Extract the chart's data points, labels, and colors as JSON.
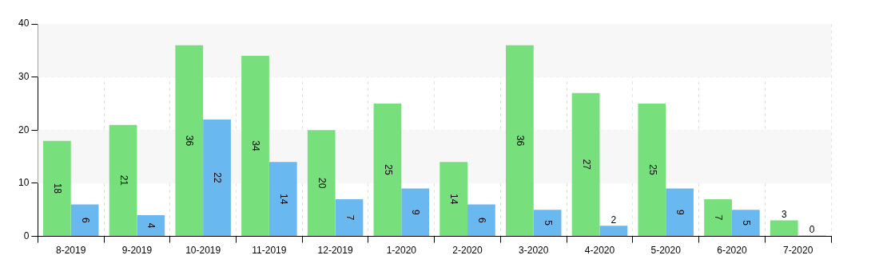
{
  "chart_data": {
    "type": "bar",
    "categories": [
      "8-2019",
      "9-2019",
      "10-2019",
      "11-2019",
      "12-2019",
      "1-2020",
      "2-2020",
      "3-2020",
      "4-2020",
      "5-2020",
      "6-2020",
      "7-2020"
    ],
    "series": [
      {
        "color": "#77e07c",
        "values": [
          18,
          21,
          36,
          34,
          20,
          25,
          14,
          36,
          27,
          25,
          7,
          3
        ]
      },
      {
        "color": "#6ab8f0",
        "values": [
          6,
          4,
          22,
          14,
          7,
          9,
          6,
          5,
          2,
          9,
          5,
          0
        ]
      }
    ],
    "ylim": [
      0,
      40
    ],
    "yticks": [
      0,
      10,
      20,
      30,
      40
    ],
    "grid": true,
    "legend": false,
    "data_labels": true
  }
}
